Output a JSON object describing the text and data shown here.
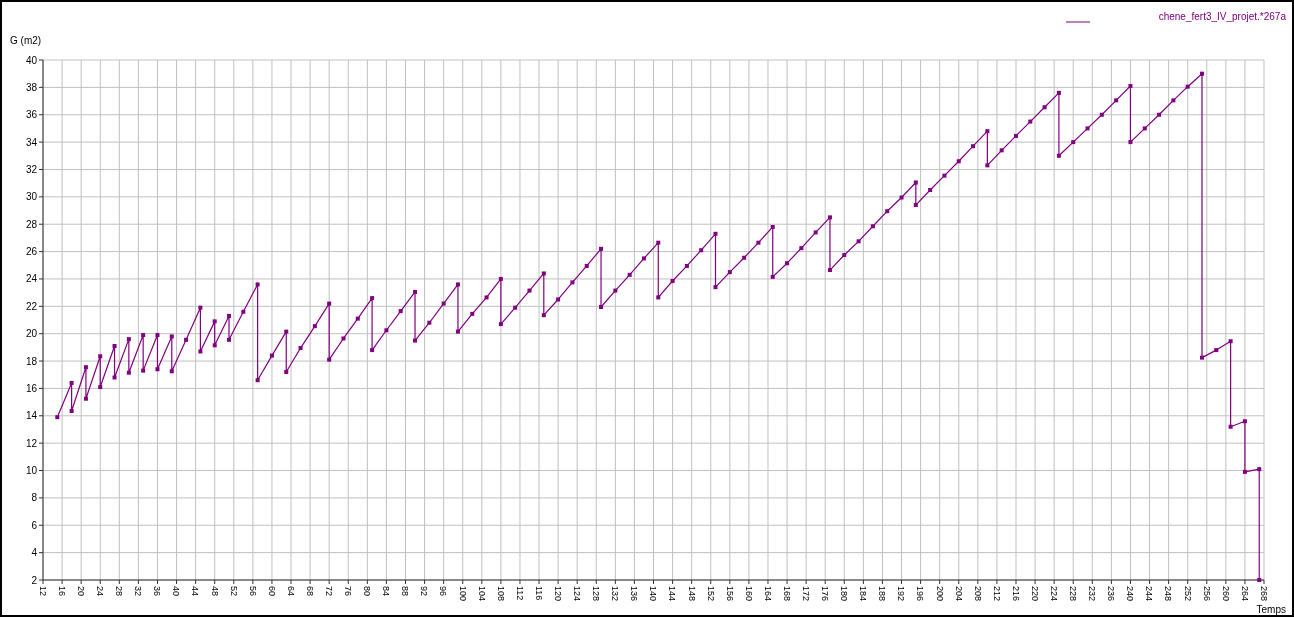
{
  "chart_data": {
    "type": "line",
    "xlabel": "Temps",
    "ylabel": "G (m2)",
    "x": [
      15,
      18,
      18,
      21,
      21,
      24,
      24,
      27,
      27,
      30,
      30,
      33,
      33,
      36,
      36,
      39,
      39,
      42,
      45,
      45,
      48,
      48,
      51,
      51,
      54,
      57,
      57,
      60,
      63,
      63,
      66,
      69,
      72,
      72,
      75,
      78,
      81,
      81,
      84,
      87,
      90,
      90,
      93,
      96,
      99,
      99,
      102,
      105,
      108,
      108,
      111,
      114,
      117,
      117,
      120,
      123,
      126,
      129,
      129,
      132,
      135,
      138,
      141,
      141,
      144,
      147,
      150,
      153,
      153,
      156,
      159,
      162,
      165,
      165,
      168,
      171,
      174,
      177,
      177,
      180,
      183,
      186,
      189,
      192,
      195,
      195,
      198,
      201,
      204,
      207,
      210,
      210,
      213,
      216,
      219,
      222,
      225,
      225,
      228,
      231,
      234,
      237,
      240,
      240,
      243,
      246,
      249,
      252,
      255,
      255,
      258,
      261,
      261,
      264,
      264,
      267,
      267
    ],
    "series": [
      {
        "name": "chene_fert3_IV_projet.*267a",
        "color": "#800080",
        "values": [
          13.9,
          16.4,
          14.35,
          17.55,
          15.25,
          18.35,
          16.1,
          19.1,
          16.8,
          19.6,
          17.15,
          19.9,
          17.3,
          19.9,
          17.4,
          19.8,
          17.25,
          19.55,
          21.9,
          18.7,
          20.9,
          19.15,
          21.3,
          19.55,
          21.6,
          23.6,
          16.6,
          18.4,
          20.15,
          17.2,
          18.95,
          20.55,
          22.2,
          18.1,
          19.65,
          21.1,
          22.6,
          18.8,
          20.25,
          21.65,
          23.05,
          19.5,
          20.8,
          22.2,
          23.6,
          20.15,
          21.45,
          22.65,
          24.0,
          20.7,
          21.9,
          23.15,
          24.4,
          21.35,
          22.5,
          23.75,
          24.95,
          26.2,
          21.95,
          23.15,
          24.3,
          25.5,
          26.65,
          22.65,
          23.85,
          24.95,
          26.1,
          27.3,
          23.4,
          24.5,
          25.55,
          26.65,
          27.8,
          24.15,
          25.15,
          26.25,
          27.4,
          28.5,
          24.65,
          25.75,
          26.75,
          27.85,
          28.95,
          29.95,
          31.05,
          29.4,
          30.5,
          31.55,
          32.6,
          33.7,
          34.8,
          32.3,
          33.4,
          34.45,
          35.5,
          36.55,
          37.6,
          33.0,
          34.0,
          35.0,
          36.0,
          37.05,
          38.1,
          34.0,
          35.0,
          36.0,
          37.05,
          38.05,
          39.0,
          18.25,
          18.8,
          19.45,
          13.2,
          13.6,
          9.9,
          10.1,
          2
        ]
      }
    ],
    "xlim": [
      12,
      268
    ],
    "xticks": [
      12,
      16,
      20,
      24,
      28,
      32,
      36,
      40,
      44,
      48,
      52,
      56,
      60,
      64,
      68,
      72,
      76,
      80,
      84,
      88,
      92,
      96,
      100,
      104,
      108,
      112,
      116,
      120,
      124,
      128,
      132,
      136,
      140,
      144,
      148,
      152,
      156,
      160,
      164,
      168,
      172,
      176,
      180,
      184,
      188,
      192,
      196,
      200,
      204,
      208,
      212,
      216,
      220,
      224,
      228,
      232,
      236,
      240,
      244,
      248,
      252,
      256,
      260,
      264,
      268
    ],
    "ylim": [
      2,
      40
    ],
    "yticks": [
      2,
      4,
      6,
      8,
      10,
      12,
      14,
      16,
      18,
      20,
      22,
      24,
      26,
      28,
      30,
      32,
      34,
      36,
      38,
      40
    ],
    "grid": true,
    "legend": "top right",
    "marker": "square",
    "line_style": "solid"
  }
}
